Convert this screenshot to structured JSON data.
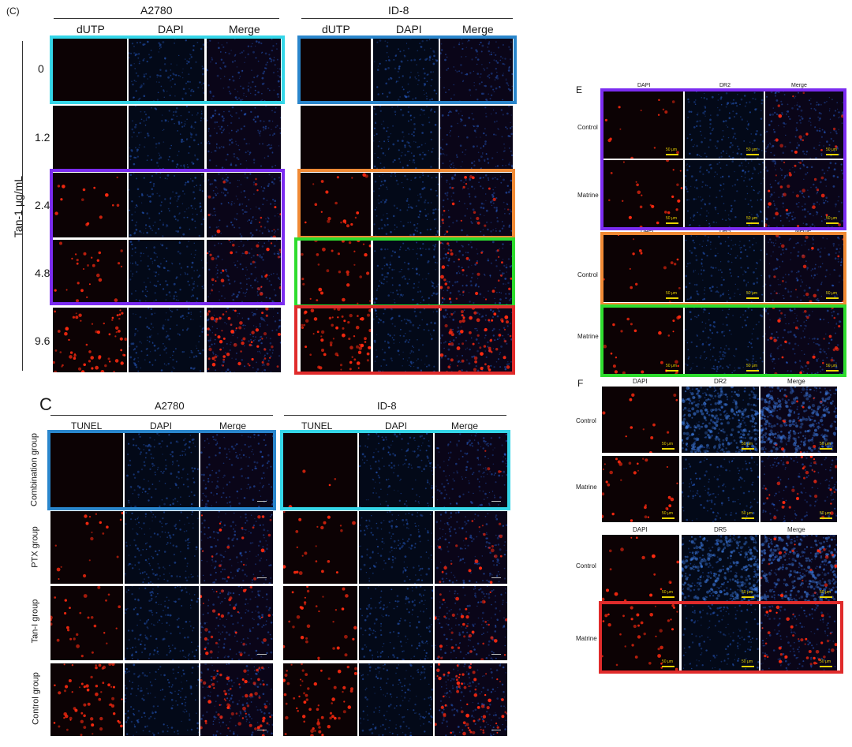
{
  "panel_top_left": {
    "letter": "(C)",
    "group_a": "A2780",
    "group_b": "ID-8",
    "columns": [
      "dUTP",
      "DAPI",
      "Merge"
    ],
    "axis_label": "Tan-1 μg/mL",
    "rows": [
      "0",
      "1.2",
      "2.4",
      "4.8",
      "9.6"
    ]
  },
  "panel_bottom_left": {
    "letter": "C",
    "group_a": "A2780",
    "group_b": "ID-8",
    "columns": [
      "TUNEL",
      "DAPI",
      "Merge"
    ],
    "rows": [
      "Combination group",
      "PTX group",
      "Tan-I group",
      "Control group"
    ]
  },
  "panel_e": {
    "letter": "E",
    "block1_columns": [
      "DAPI",
      "DR2",
      "Merge"
    ],
    "block2_columns": [
      "DAPI",
      "DR5",
      "Merge"
    ],
    "rows": [
      "Control",
      "Matrine",
      "Control",
      "Matrine"
    ],
    "scale_label": "50 μm"
  },
  "panel_f": {
    "letter": "F",
    "block1_columns": [
      "DAPI",
      "DR2",
      "Merge"
    ],
    "block2_columns": [
      "DAPI",
      "DR5",
      "Merge"
    ],
    "rows": [
      "Control",
      "Matrine",
      "Control",
      "Matrine"
    ],
    "scale_label": "50 μm"
  },
  "colors": {
    "highlight_cyan": "#35d6e8",
    "highlight_blue": "#2a86cc",
    "highlight_purple": "#7b2cf0",
    "highlight_orange": "#f08a35",
    "highlight_green": "#2edc2e",
    "highlight_red": "#e02b2b",
    "red_channel": "#ff2a10",
    "blue_channel": "#2a64d8",
    "scale_bar": "#e8d200"
  }
}
